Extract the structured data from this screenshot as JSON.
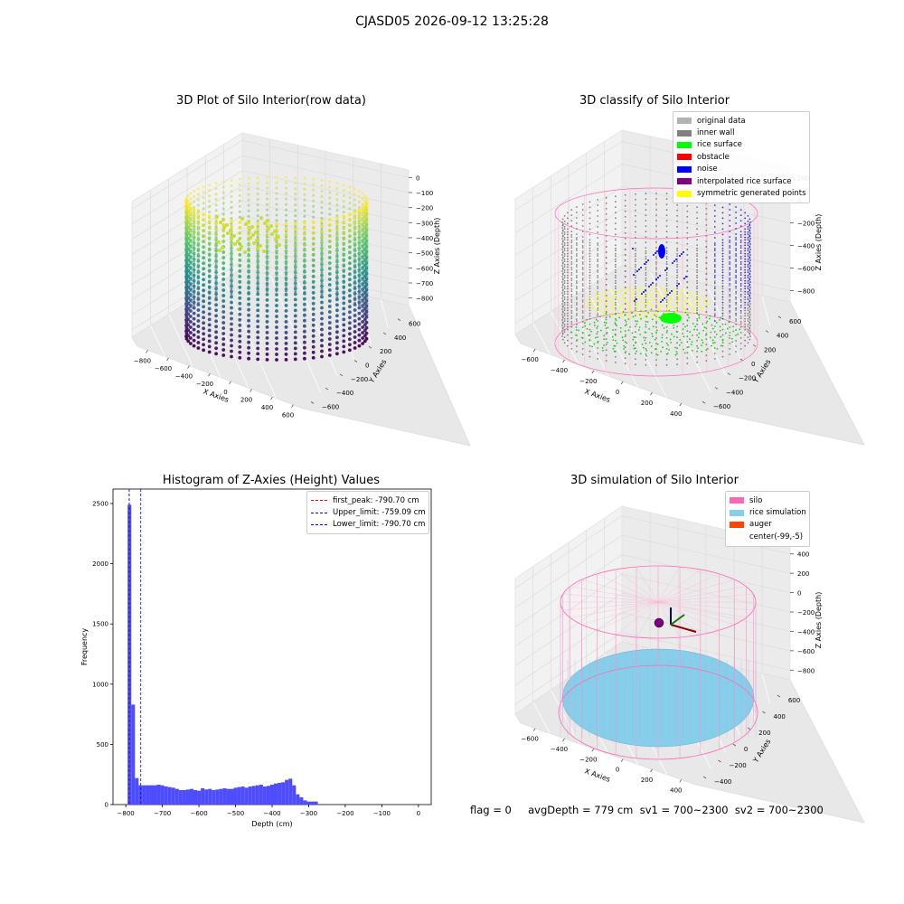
{
  "suptitle": "CJASD05 2026-09-12 13:25:28",
  "footer": "flag = 0     avgDepth = 779 cm  sv1 = 700~2300  sv2 = 700~2300",
  "colors": {
    "hist_bar": "#4d4dff",
    "first_peak": "#ff0000",
    "upper_limit": "#0000ff",
    "lower_limit": "#0000ff",
    "original_data": "#b3b3b3",
    "inner_wall": "#808080",
    "rice_surface": "#00ff00",
    "obstacle": "#ff0000",
    "noise": "#0000ff",
    "interpolated_rice_surface": "#800080",
    "symmetric_generated_points": "#ffff00",
    "silo": "#ff69b4",
    "rice_simulation": "#87ceeb",
    "auger": "#ff4500"
  },
  "chart_data": [
    {
      "type": "scatter",
      "subtype": "3d",
      "title": "3D Plot of Silo Interior(row data)",
      "xlabel": "X Axies",
      "ylabel": "Y Axies",
      "zlabel": "Z Axies (Depth)",
      "xticks": [
        "−800",
        "−600",
        "−400",
        "−200",
        "0",
        "200",
        "400",
        "600"
      ],
      "yticks": [
        "600",
        "400",
        "200",
        "0",
        "−200",
        "−400",
        "−600"
      ],
      "zticks": [
        "0",
        "−100",
        "−200",
        "−300",
        "−400",
        "−500",
        "−600",
        "−700",
        "−800"
      ],
      "xlim": [
        -850,
        650
      ],
      "ylim": [
        -650,
        650
      ],
      "zlim": [
        -850,
        50
      ],
      "colormap": "viridis"
    },
    {
      "type": "scatter",
      "subtype": "3d",
      "title": "3D classify of Silo Interior",
      "xlabel": "X Axies",
      "ylabel": "Y Axies",
      "zlabel": "Z Axies (Depth)",
      "xticks": [
        "−600",
        "−400",
        "−200",
        "0",
        "200",
        "400"
      ],
      "yticks": [
        "600",
        "400",
        "200",
        "0",
        "−200",
        "−400",
        "−600"
      ],
      "zticks": [
        "200",
        "0",
        "−200",
        "−400",
        "−600",
        "−800"
      ],
      "legend": [
        "original data",
        "inner wall",
        "rice surface",
        "obstacle",
        "noise",
        "interpolated rice surface",
        "symmetric generated points"
      ],
      "legend_loc": "upper right"
    },
    {
      "type": "bar",
      "subtype": "histogram",
      "title": "Histogram of Z-Axies (Height) Values",
      "xlabel": "Depth (cm)",
      "ylabel": "Frequency",
      "xlim": [
        -835,
        35
      ],
      "ylim": [
        0,
        2620
      ],
      "xticks": [
        -800,
        -700,
        -600,
        -500,
        -400,
        -300,
        -200,
        -100,
        0
      ],
      "yticks": [
        0,
        500,
        1000,
        1500,
        2000,
        2500
      ],
      "bin_start": -795,
      "bin_width": 10,
      "values": [
        2490,
        830,
        220,
        160,
        160,
        160,
        160,
        160,
        165,
        160,
        150,
        145,
        140,
        130,
        120,
        120,
        125,
        130,
        120,
        115,
        135,
        125,
        130,
        120,
        125,
        130,
        135,
        130,
        130,
        140,
        145,
        150,
        140,
        150,
        155,
        160,
        165,
        150,
        155,
        165,
        175,
        180,
        185,
        205,
        215,
        160,
        85,
        60,
        35,
        25,
        25,
        25
      ],
      "lines": [
        {
          "name": "first_peak: -790.70 cm",
          "x": -790.7,
          "color": "#ff0000"
        },
        {
          "name": "Upper_limit: -759.09 cm",
          "x": -759.09,
          "color": "#0000ff"
        },
        {
          "name": "Lower_limit: -790.70 cm",
          "x": -790.7,
          "color": "#0000ff"
        }
      ],
      "legend_loc": "upper right"
    },
    {
      "type": "scatter",
      "subtype": "3d",
      "title": "3D simulation of Silo Interior",
      "xlabel": "X Axies",
      "ylabel": "Y Axies",
      "zlabel": "Z Axies (Depth)",
      "xticks": [
        "−600",
        "−400",
        "−200",
        "0",
        "200",
        "400"
      ],
      "yticks": [
        "600",
        "400",
        "200",
        "0",
        "−200",
        "−400"
      ],
      "zticks": [
        "400",
        "200",
        "0",
        "−200",
        "−400",
        "−600",
        "−800"
      ],
      "legend": [
        "silo",
        "rice simulation",
        "auger",
        "center(-99,-5)"
      ],
      "legend_loc": "upper right"
    }
  ]
}
